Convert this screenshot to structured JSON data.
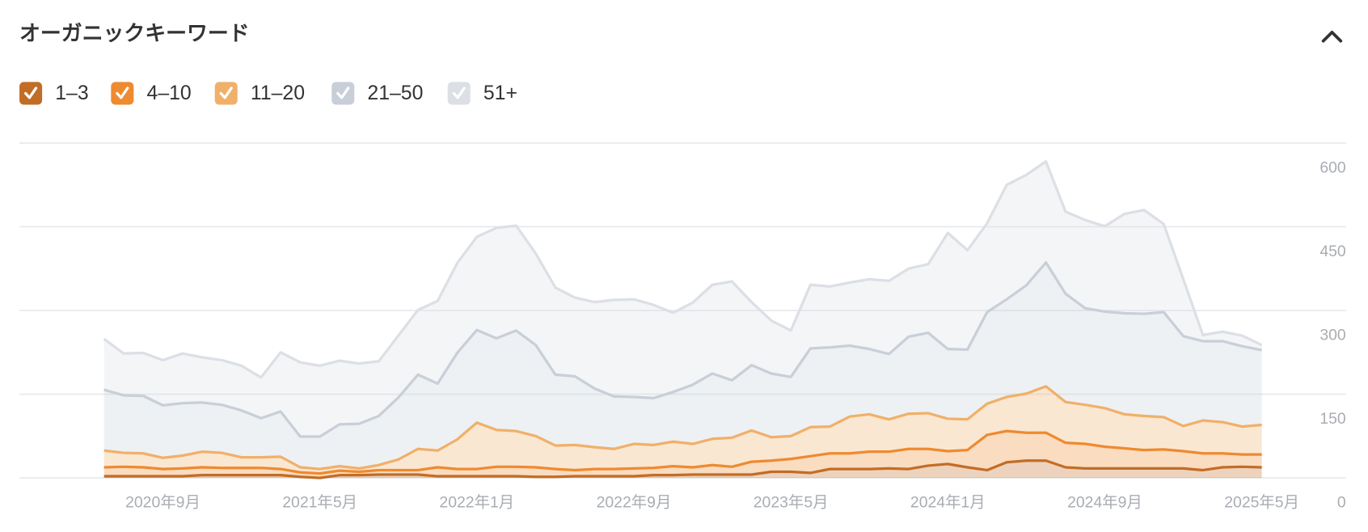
{
  "chart_data": {
    "type": "stacked_area",
    "title": "オーガニックキーワード",
    "categories": [
      null,
      null,
      null,
      "2020年9月",
      null,
      null,
      null,
      null,
      null,
      null,
      null,
      "2021年5月",
      null,
      null,
      null,
      null,
      null,
      null,
      null,
      "2022年1月",
      null,
      null,
      null,
      null,
      null,
      null,
      null,
      "2022年9月",
      null,
      null,
      null,
      null,
      null,
      null,
      null,
      "2023年5月",
      null,
      null,
      null,
      null,
      null,
      null,
      null,
      "2024年1月",
      null,
      null,
      null,
      null,
      null,
      null,
      null,
      "2024年9月",
      null,
      null,
      null,
      null,
      null,
      null,
      null,
      "2025年5月"
    ],
    "ylim": [
      0,
      600
    ],
    "yticks": [
      0,
      150,
      300,
      450,
      600
    ],
    "grid": true,
    "legend": "top-left",
    "series": [
      {
        "name": "1–3",
        "color": "#c26d26",
        "values": [
          3,
          3,
          3,
          3,
          3,
          5,
          5,
          5,
          5,
          5,
          2,
          0,
          5,
          5,
          6,
          6,
          6,
          3,
          3,
          3,
          3,
          3,
          2,
          2,
          3,
          3,
          3,
          3,
          5,
          5,
          6,
          6,
          6,
          6,
          11,
          11,
          9,
          16,
          16,
          16,
          17,
          16,
          22,
          25,
          19,
          14,
          28,
          31,
          31,
          19,
          17,
          17,
          17,
          17,
          17,
          17,
          14,
          19,
          20,
          19
        ]
      },
      {
        "name": "4–10",
        "color": "#ee8a30",
        "values": [
          16,
          17,
          16,
          13,
          14,
          14,
          13,
          13,
          13,
          11,
          8,
          8,
          8,
          6,
          8,
          8,
          8,
          16,
          13,
          13,
          17,
          17,
          17,
          14,
          11,
          13,
          13,
          14,
          13,
          16,
          13,
          17,
          14,
          23,
          20,
          23,
          30,
          28,
          28,
          31,
          30,
          36,
          30,
          23,
          31,
          63,
          56,
          50,
          50,
          44,
          44,
          39,
          36,
          33,
          34,
          31,
          30,
          25,
          22,
          23
        ]
      },
      {
        "name": "11–20",
        "color": "#f0b06a",
        "values": [
          30,
          25,
          25,
          20,
          23,
          28,
          27,
          19,
          19,
          22,
          9,
          8,
          8,
          6,
          9,
          19,
          38,
          30,
          53,
          83,
          66,
          64,
          56,
          42,
          45,
          39,
          36,
          44,
          41,
          44,
          42,
          47,
          52,
          56,
          42,
          41,
          52,
          48,
          66,
          67,
          58,
          63,
          64,
          58,
          55,
          56,
          61,
          70,
          83,
          73,
          70,
          69,
          61,
          61,
          58,
          45,
          59,
          56,
          50,
          53
        ]
      },
      {
        "name": "21–50",
        "color": "#c8cfd8",
        "values": [
          109,
          103,
          103,
          94,
          94,
          88,
          86,
          84,
          70,
          81,
          55,
          58,
          75,
          80,
          88,
          111,
          133,
          120,
          155,
          166,
          164,
          180,
          163,
          127,
          123,
          105,
          94,
          84,
          84,
          89,
          106,
          117,
          103,
          117,
          114,
          106,
          141,
          142,
          127,
          117,
          117,
          138,
          144,
          125,
          125,
          164,
          175,
          194,
          222,
          194,
          173,
          173,
          181,
          183,
          188,
          161,
          142,
          145,
          144,
          134
        ]
      },
      {
        "name": "51+",
        "color": "#dcdfe5",
        "values": [
          91,
          75,
          77,
          81,
          89,
          81,
          80,
          80,
          73,
          106,
          133,
          127,
          114,
          108,
          98,
          111,
          116,
          148,
          161,
          167,
          198,
          188,
          164,
          156,
          141,
          155,
          173,
          175,
          167,
          142,
          147,
          159,
          177,
          113,
          95,
          83,
          114,
          109,
          113,
          125,
          131,
          122,
          123,
          208,
          178,
          159,
          205,
          198,
          181,
          147,
          158,
          153,
          178,
          186,
          158,
          102,
          11,
          17,
          19,
          9
        ]
      }
    ]
  }
}
